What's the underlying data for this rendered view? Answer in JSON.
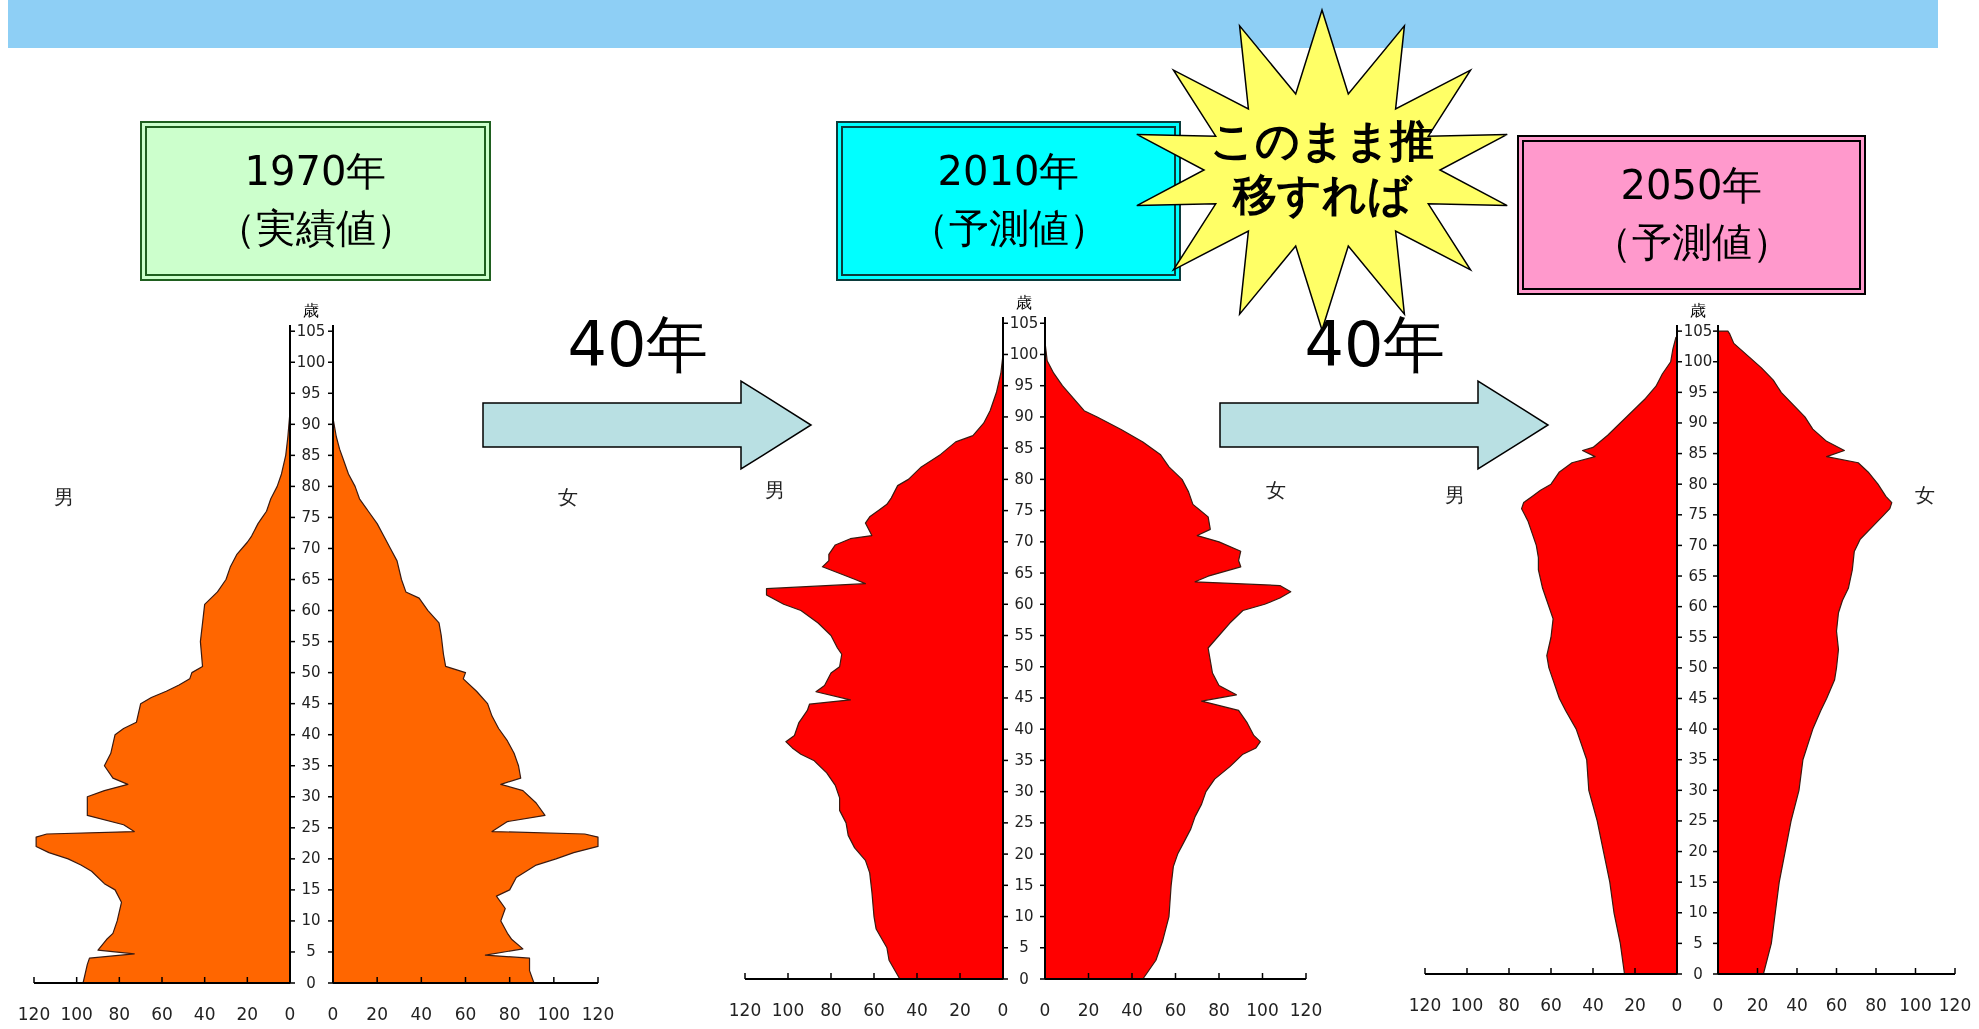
{
  "chart_data": [
    {
      "type": "area",
      "orientation": "horizontal",
      "title": "1970年",
      "subtitle": "（実績値）",
      "ylabel": "歳",
      "xlim": [
        120,
        0
      ],
      "xticks": [
        120,
        100,
        80,
        60,
        40,
        20,
        0
      ],
      "ylim": [
        0,
        106
      ],
      "yticks": [
        0,
        5,
        10,
        15,
        20,
        25,
        30,
        35,
        40,
        45,
        50,
        55,
        60,
        65,
        70,
        75,
        80,
        85,
        90,
        95,
        100,
        105
      ],
      "annotations": [
        "40年"
      ],
      "series": [
        {
          "name": "男",
          "color": "#ff6600",
          "x": [
            0,
            3,
            4,
            4.7,
            5.3,
            7,
            8,
            10,
            13,
            15,
            16,
            18,
            19,
            20,
            21,
            22,
            23.5,
            24,
            24.4,
            25.5,
            27,
            30,
            31,
            32,
            33,
            35,
            37,
            40,
            41,
            42,
            45,
            46,
            47,
            48,
            49,
            50,
            51,
            55,
            58,
            61,
            62,
            63,
            65,
            67,
            69,
            71,
            72,
            74,
            75,
            76,
            78,
            80,
            82,
            85,
            88,
            92
          ],
          "values": [
            97,
            95,
            94,
            73,
            90,
            86,
            83,
            81,
            79,
            82,
            87,
            93,
            98,
            104,
            113,
            119,
            119,
            114,
            73,
            78,
            95,
            95,
            87,
            76,
            83,
            87,
            84,
            82,
            78,
            72,
            70,
            65,
            58,
            52,
            47,
            46,
            41,
            42,
            41,
            40,
            37,
            34,
            30,
            28,
            25,
            20,
            18,
            15,
            13,
            11,
            9,
            6,
            4,
            2,
            1,
            0
          ]
        }
      ]
    },
    {
      "type": "area",
      "orientation": "horizontal",
      "tick_labels": "x",
      "xlim": [
        0,
        120
      ],
      "xticks": [
        0,
        20,
        40,
        60,
        80,
        100,
        120
      ],
      "ylim": [
        0,
        106
      ],
      "yticks": [
        0,
        5,
        10,
        15,
        20,
        25,
        30,
        35,
        40,
        45,
        50,
        55,
        60,
        65,
        70,
        75,
        80,
        85,
        90,
        95,
        100,
        105
      ],
      "series": [
        {
          "name": "女",
          "color": "#ff6600",
          "x": [
            0,
            2,
            4,
            4.5,
            5.5,
            7,
            8,
            10,
            12,
            14,
            15,
            17,
            19,
            20,
            21,
            22,
            23.5,
            24,
            24.4,
            26,
            27,
            29,
            31,
            32,
            33,
            35,
            37,
            39,
            41,
            43,
            45,
            47,
            49,
            50,
            51,
            53,
            56,
            58,
            60,
            62,
            63,
            65,
            68,
            70,
            72,
            74,
            76,
            78,
            80,
            82,
            84,
            86,
            88,
            91
          ],
          "values": [
            91,
            89,
            89,
            69,
            86,
            81,
            79,
            76,
            78,
            74,
            80,
            83,
            92,
            101,
            109,
            120,
            120,
            114,
            72,
            79,
            96,
            92,
            86,
            76,
            85,
            84,
            82,
            79,
            75,
            72,
            70,
            65,
            59,
            60,
            51,
            50,
            49,
            48,
            43,
            39,
            33,
            31,
            29,
            26,
            23,
            20,
            16,
            12,
            10,
            7,
            5,
            3,
            1.5,
            0
          ]
        }
      ]
    },
    {
      "type": "area",
      "orientation": "horizontal",
      "title": "2010年",
      "subtitle": "（予測値）",
      "ylabel": "歳",
      "xlim": [
        120,
        0
      ],
      "xticks": [
        120,
        100,
        80,
        60,
        40,
        20,
        0
      ],
      "ylim": [
        0,
        106
      ],
      "yticks": [
        0,
        5,
        10,
        15,
        20,
        25,
        30,
        35,
        40,
        45,
        50,
        55,
        60,
        65,
        70,
        75,
        80,
        85,
        90,
        95,
        100,
        105
      ],
      "annotations": [
        "40年",
        "このまま推移すれば"
      ],
      "series": [
        {
          "name": "男",
          "color": "#ff0000",
          "x": [
            0,
            3,
            5,
            8,
            10,
            14,
            17,
            19,
            21,
            23,
            25,
            27,
            29,
            31,
            33,
            35,
            36,
            37,
            38,
            39,
            41,
            43,
            44,
            44.7,
            46,
            47,
            49,
            50,
            52,
            53,
            55,
            57,
            59,
            60,
            61.5,
            62.5,
            63.3,
            64,
            66,
            67,
            68,
            69.5,
            70.5,
            71,
            73,
            74,
            76,
            77,
            79,
            80,
            82,
            84,
            86,
            87,
            89,
            91,
            94,
            97,
            100
          ],
          "values": [
            48,
            53,
            54,
            59,
            60,
            61,
            62,
            64,
            69,
            72,
            73,
            76,
            76,
            78,
            82,
            88,
            94,
            98,
            101,
            97,
            95,
            91,
            90,
            71,
            87,
            83,
            80,
            76,
            75,
            77,
            80,
            86,
            94,
            102,
            110,
            110,
            64,
            69,
            84,
            81,
            81,
            78,
            71,
            61,
            64,
            62,
            54,
            52,
            49,
            44,
            38,
            29,
            22,
            14,
            9,
            6,
            3,
            1,
            0
          ]
        }
      ]
    },
    {
      "type": "area",
      "orientation": "horizontal",
      "tick_labels": "x",
      "xlim": [
        0,
        120
      ],
      "xticks": [
        0,
        20,
        40,
        60,
        80,
        100,
        120
      ],
      "ylim": [
        0,
        106
      ],
      "yticks": [
        0,
        5,
        10,
        15,
        20,
        25,
        30,
        35,
        40,
        45,
        50,
        55,
        60,
        65,
        70,
        75,
        80,
        85,
        90,
        95,
        100,
        105
      ],
      "series": [
        {
          "name": "女",
          "color": "#ff0000",
          "x": [
            0,
            3,
            6,
            10,
            15,
            18,
            20,
            22,
            24,
            26,
            28,
            30,
            32,
            34,
            36,
            37,
            38,
            39,
            41,
            43,
            44.5,
            45.5,
            47,
            49,
            51,
            53,
            55,
            57,
            59,
            60,
            61,
            62,
            63,
            63.6,
            64.5,
            66,
            67,
            68.5,
            70,
            71,
            72,
            74,
            76,
            78,
            80,
            82,
            84,
            86,
            88,
            90,
            91,
            93,
            95,
            97,
            99,
            102
          ],
          "values": [
            45,
            51,
            54,
            57,
            58,
            59,
            61,
            64,
            67,
            69,
            72,
            74,
            78,
            85,
            91,
            97,
            99,
            96,
            93,
            89,
            72,
            88,
            80,
            77,
            76,
            75,
            80,
            85,
            91,
            101,
            108,
            113,
            108,
            69,
            75,
            90,
            89,
            90,
            80,
            70,
            76,
            75,
            68,
            66,
            63,
            57,
            53,
            45,
            35,
            24,
            18,
            13,
            8,
            4,
            1,
            0
          ]
        }
      ]
    },
    {
      "type": "area",
      "orientation": "horizontal",
      "title": "2050年",
      "subtitle": "（予測値）",
      "ylabel": "歳",
      "xlim": [
        120,
        0
      ],
      "xticks": [
        120,
        100,
        80,
        60,
        40,
        20,
        0
      ],
      "ylim": [
        0,
        106
      ],
      "yticks": [
        0,
        5,
        10,
        15,
        20,
        25,
        30,
        35,
        40,
        45,
        50,
        55,
        60,
        65,
        70,
        75,
        80,
        85,
        90,
        95,
        100,
        105
      ],
      "series": [
        {
          "name": "男",
          "color": "#ff0000",
          "x": [
            0,
            5,
            10,
            15,
            20,
            25,
            30,
            35,
            40,
            43,
            45,
            48,
            50,
            52,
            55,
            58,
            61,
            63,
            66,
            68,
            70,
            72,
            74,
            76,
            77,
            78,
            79,
            80,
            82,
            83.5,
            84.5,
            85.5,
            86,
            88,
            90,
            92,
            94,
            96,
            98,
            100,
            102,
            104
          ],
          "values": [
            25,
            27,
            30,
            32,
            35,
            38,
            42,
            43,
            48,
            53,
            56,
            59,
            61,
            62,
            60,
            59,
            62,
            64,
            66,
            66,
            67,
            69,
            71,
            74,
            73,
            69,
            65,
            60,
            56,
            50,
            39,
            45,
            40,
            33,
            27,
            21,
            15,
            10,
            7,
            3,
            2,
            0.5
          ]
        }
      ]
    },
    {
      "type": "area",
      "orientation": "horizontal",
      "tick_labels": "x",
      "xlim": [
        0,
        120
      ],
      "xticks": [
        0,
        20,
        40,
        60,
        80,
        100,
        120
      ],
      "ylim": [
        0,
        106
      ],
      "yticks": [
        0,
        5,
        10,
        15,
        20,
        25,
        30,
        35,
        40,
        45,
        50,
        55,
        60,
        65,
        70,
        75,
        80,
        85,
        90,
        95,
        100,
        105
      ],
      "series": [
        {
          "name": "女",
          "color": "#ff0000",
          "x": [
            0,
            5,
            10,
            15,
            20,
            25,
            30,
            35,
            40,
            43,
            45,
            48,
            50,
            53,
            56,
            59,
            61,
            63,
            66,
            69,
            71,
            73,
            75,
            76,
            77,
            78,
            80,
            82,
            83.5,
            84.5,
            85.5,
            87,
            89,
            91,
            93,
            95,
            97,
            99,
            101,
            103,
            104.5,
            105
          ],
          "values": [
            23,
            27,
            29,
            31,
            34,
            37,
            41,
            43,
            48,
            52,
            55,
            59,
            60,
            61,
            60,
            61,
            63,
            66,
            68,
            69,
            72,
            78,
            84,
            87,
            88,
            85,
            81,
            76,
            71,
            55,
            64,
            55,
            48,
            44,
            38,
            32,
            28,
            22,
            15,
            8,
            6,
            5
          ]
        }
      ]
    }
  ]
}
